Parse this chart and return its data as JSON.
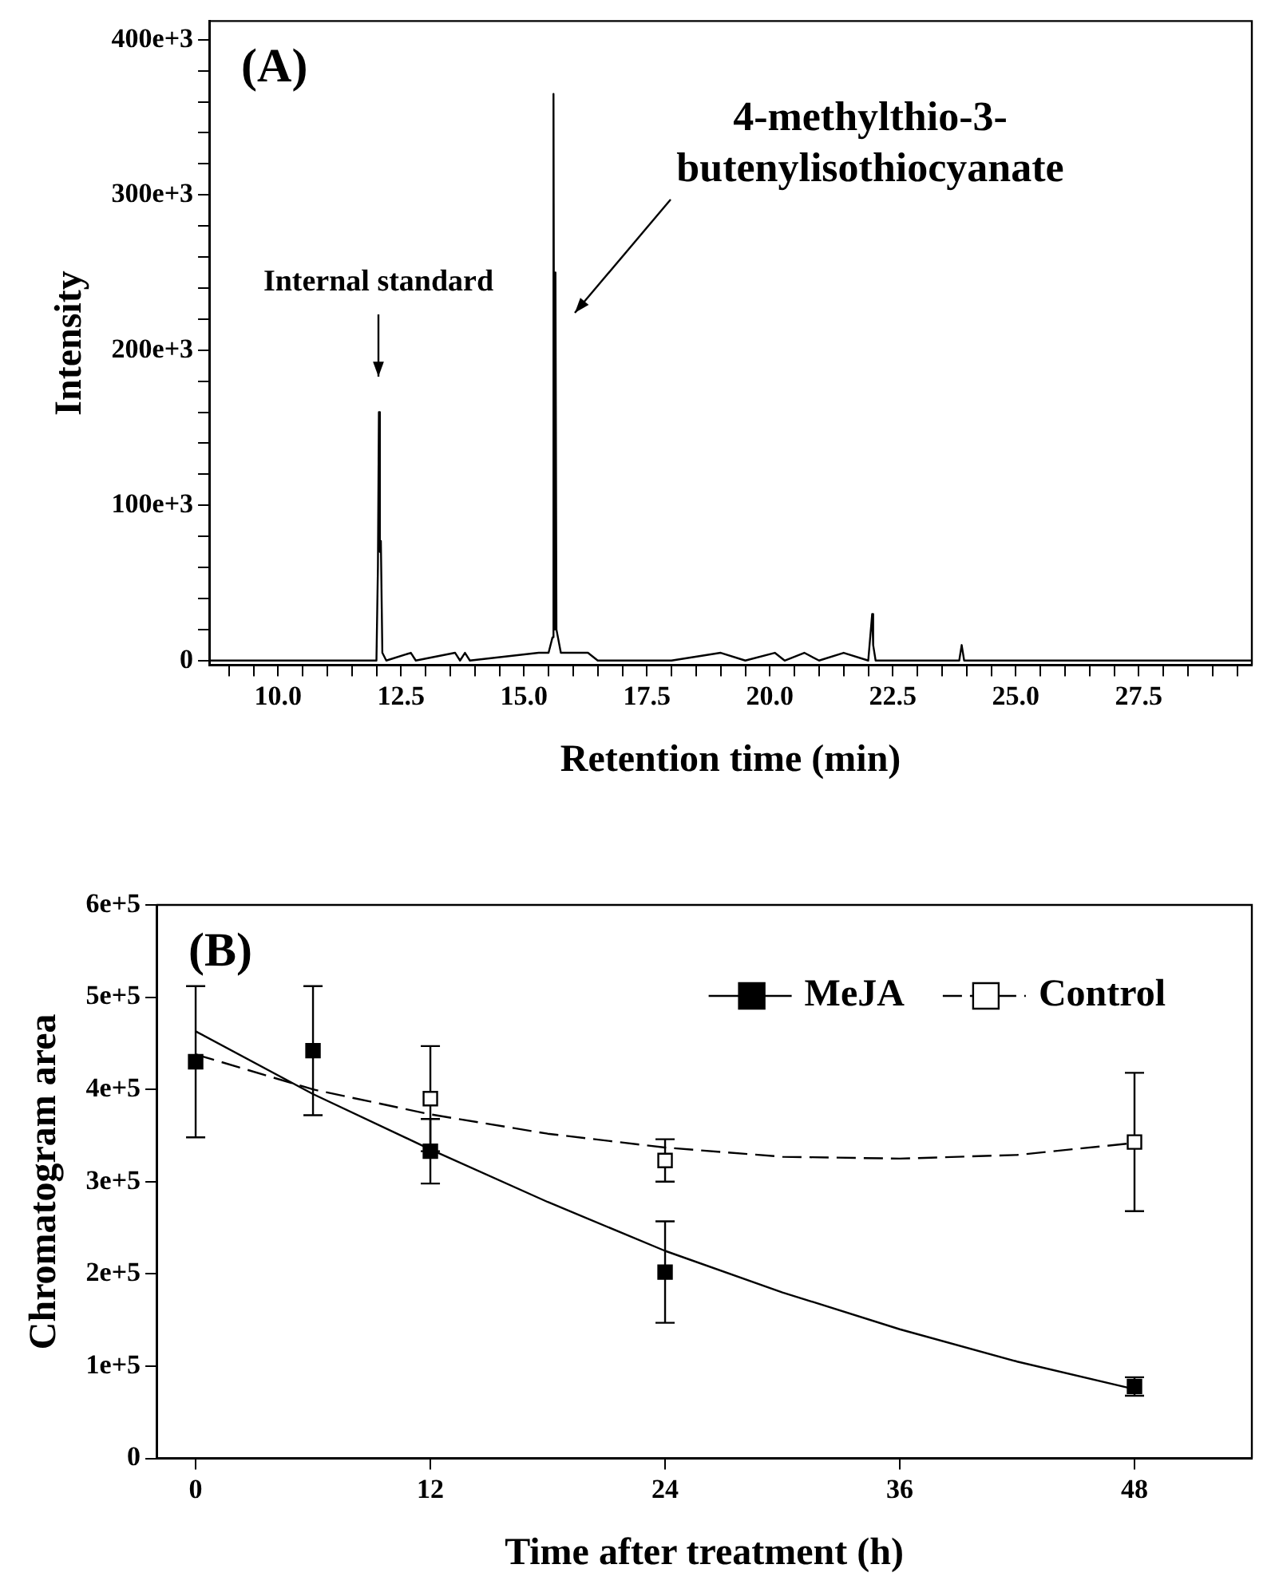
{
  "chart_data": [
    {
      "type": "line",
      "xlabel": "Retention time (min)",
      "ylabel": "Intensity",
      "xlim": [
        8.6,
        29.8
      ],
      "ylim": [
        -3000,
        412000
      ],
      "grid": false,
      "legend": false,
      "marker": "none",
      "line_style": "solid",
      "xticks": [
        {
          "value": 9,
          "label": null
        },
        {
          "value": 9.5,
          "label": null
        },
        {
          "value": 10,
          "label": "10.0"
        },
        {
          "value": 10.5,
          "label": null
        },
        {
          "value": 11,
          "label": null
        },
        {
          "value": 11.5,
          "label": null
        },
        {
          "value": 12,
          "label": null
        },
        {
          "value": 12.5,
          "label": "12.5"
        },
        {
          "value": 13,
          "label": null
        },
        {
          "value": 13.5,
          "label": null
        },
        {
          "value": 14,
          "label": null
        },
        {
          "value": 14.5,
          "label": null
        },
        {
          "value": 15,
          "label": "15.0"
        },
        {
          "value": 15.5,
          "label": null
        },
        {
          "value": 16,
          "label": null
        },
        {
          "value": 16.5,
          "label": null
        },
        {
          "value": 17,
          "label": null
        },
        {
          "value": 17.5,
          "label": "17.5"
        },
        {
          "value": 18,
          "label": null
        },
        {
          "value": 18.5,
          "label": null
        },
        {
          "value": 19,
          "label": null
        },
        {
          "value": 19.5,
          "label": null
        },
        {
          "value": 20,
          "label": "20.0"
        },
        {
          "value": 20.5,
          "label": null
        },
        {
          "value": 21,
          "label": null
        },
        {
          "value": 21.5,
          "label": null
        },
        {
          "value": 22,
          "label": null
        },
        {
          "value": 22.5,
          "label": "22.5"
        },
        {
          "value": 23,
          "label": null
        },
        {
          "value": 23.5,
          "label": null
        },
        {
          "value": 24,
          "label": null
        },
        {
          "value": 24.5,
          "label": null
        },
        {
          "value": 25,
          "label": "25.0"
        },
        {
          "value": 25.5,
          "label": null
        },
        {
          "value": 26,
          "label": null
        },
        {
          "value": 26.5,
          "label": null
        },
        {
          "value": 27,
          "label": null
        },
        {
          "value": 27.5,
          "label": "27.5"
        },
        {
          "value": 28,
          "label": null
        },
        {
          "value": 28.5,
          "label": null
        },
        {
          "value": 29,
          "label": null
        },
        {
          "value": 29.5,
          "label": null
        }
      ],
      "yticks": [
        0,
        {
          "value": 20000,
          "label": null
        },
        {
          "value": 40000,
          "label": null
        },
        {
          "value": 60000,
          "label": null
        },
        {
          "value": 80000,
          "label": null
        },
        {
          "value": 100000,
          "label": "100e+3"
        },
        {
          "value": 120000,
          "label": null
        },
        {
          "value": 140000,
          "label": null
        },
        {
          "value": 160000,
          "label": null
        },
        {
          "value": 180000,
          "label": null
        },
        {
          "value": 200000,
          "label": "200e+3"
        },
        {
          "value": 220000,
          "label": null
        },
        {
          "value": 240000,
          "label": null
        },
        {
          "value": 260000,
          "label": null
        },
        {
          "value": 280000,
          "label": null
        },
        {
          "value": 300000,
          "label": "300e+3"
        },
        {
          "value": 320000,
          "label": null
        },
        {
          "value": 340000,
          "label": null
        },
        {
          "value": 360000,
          "label": null
        },
        {
          "value": 380000,
          "label": null
        },
        {
          "value": 400000,
          "label": "400e+3"
        }
      ],
      "series": [
        {
          "color": "#000000",
          "x": [
            8.6,
            9.0,
            9.5,
            10,
            10.5,
            11,
            11.5,
            12.0,
            12.03,
            12.05,
            12.07,
            12.09,
            12.12,
            12.2,
            12.7,
            12.8,
            13.6,
            13.7,
            13.8,
            13.9,
            15.3,
            15.5,
            15.58,
            15.6,
            15.62,
            15.64,
            15.66,
            15.75,
            15.9,
            16.3,
            16.5,
            17,
            18,
            19,
            19.5,
            20.1,
            20.3,
            20.7,
            21,
            21.5,
            22.0,
            22.08,
            22.1,
            22.15,
            22.5,
            23,
            23.5,
            23.85,
            23.9,
            23.95,
            24.5,
            25,
            25.5,
            26,
            27,
            28,
            29,
            29.8
          ],
          "values": [
            0,
            0,
            0,
            0,
            0,
            0,
            0,
            0,
            60000,
            160000,
            70000,
            77000,
            5000,
            0,
            5000,
            0,
            5000,
            0,
            5000,
            0,
            5000,
            5000,
            15000,
            365000,
            20000,
            250000,
            20000,
            5000,
            5000,
            5000,
            0,
            0,
            0,
            5000,
            0,
            5000,
            0,
            5000,
            0,
            5000,
            0,
            30000,
            10000,
            0,
            0,
            0,
            0,
            0,
            10000,
            0,
            0,
            0,
            0,
            0,
            0,
            0,
            0,
            0
          ]
        }
      ],
      "annotations": [
        "(A)",
        "Internal standard",
        "4-methylthio-3-\nbutenylisothiocyanate"
      ]
    },
    {
      "type": "scatter",
      "xlabel": "Time after treatment (h)",
      "ylabel": "Chromatogram area",
      "xlim": [
        -2,
        54
      ],
      "ylim": [
        0,
        600000
      ],
      "grid": false,
      "legend": "top right",
      "marker": "square",
      "xticks": [
        0,
        12,
        24,
        36,
        48
      ],
      "yticks": [
        0,
        {
          "value": 100000,
          "label": "1e+5"
        },
        {
          "value": 200000,
          "label": "2e+5"
        },
        {
          "value": 300000,
          "label": "3e+5"
        },
        {
          "value": 400000,
          "label": "4e+5"
        },
        {
          "value": 500000,
          "label": "5e+5"
        },
        {
          "value": 600000,
          "label": "6e+5"
        }
      ],
      "series": [
        {
          "name": "MeJA",
          "color": "#000000",
          "line_style": "solid",
          "x": [
            0,
            6,
            12,
            24,
            48
          ],
          "values": [
            430000,
            442000,
            333000,
            202000,
            78000
          ],
          "errors": [
            82000,
            70000,
            35000,
            55000,
            10000
          ]
        },
        {
          "name": "Control",
          "color": "#ffffff",
          "line_style": "dashed",
          "x": [
            12,
            24,
            48
          ],
          "values": [
            390000,
            323000,
            343000
          ],
          "errors": [
            57000,
            23000,
            75000
          ]
        },
        {
          "type": "line",
          "marker": "none",
          "line_style": "solid",
          "color": "#000000",
          "x": [
            0,
            6,
            12,
            18,
            24,
            30,
            36,
            42,
            48
          ],
          "values": [
            463000,
            395000,
            335000,
            278000,
            225000,
            180000,
            140000,
            105000,
            75000
          ]
        },
        {
          "type": "line",
          "marker": "none",
          "line_style": "dashed",
          "color": "#000000",
          "x": [
            0,
            6,
            12,
            18,
            24,
            30,
            36,
            42,
            48
          ],
          "values": [
            438000,
            400000,
            373000,
            352000,
            337000,
            327000,
            325000,
            329000,
            342000
          ]
        }
      ],
      "annotations": [
        "(B)"
      ]
    }
  ]
}
